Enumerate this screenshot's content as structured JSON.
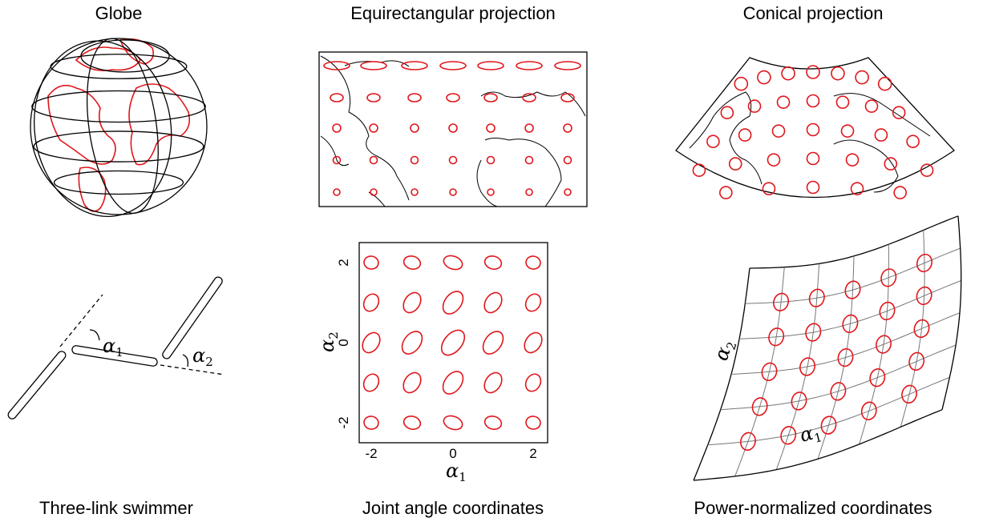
{
  "top_titles": [
    "Globe",
    "Equirectangular projection",
    "Conical projection"
  ],
  "bottom_titles": [
    "Three-link swimmer",
    "Joint angle coordinates",
    "Power-normalized coordinates"
  ],
  "swimmer": {
    "alpha1": {
      "symbol": "α",
      "subscript": "1"
    },
    "alpha2": {
      "symbol": "α",
      "subscript": "2"
    }
  },
  "joint_angle": {
    "xticks": [
      -2,
      0,
      2
    ],
    "yticks": [
      -2,
      0,
      2
    ],
    "xlabel": {
      "symbol": "α",
      "subscript": "1"
    },
    "ylabel": {
      "symbol": "α",
      "subscript": "2"
    }
  },
  "power_normalized": {
    "xlabel": {
      "symbol": "α",
      "subscript": "1"
    },
    "ylabel": {
      "symbol": "α",
      "subscript": "2"
    }
  }
}
